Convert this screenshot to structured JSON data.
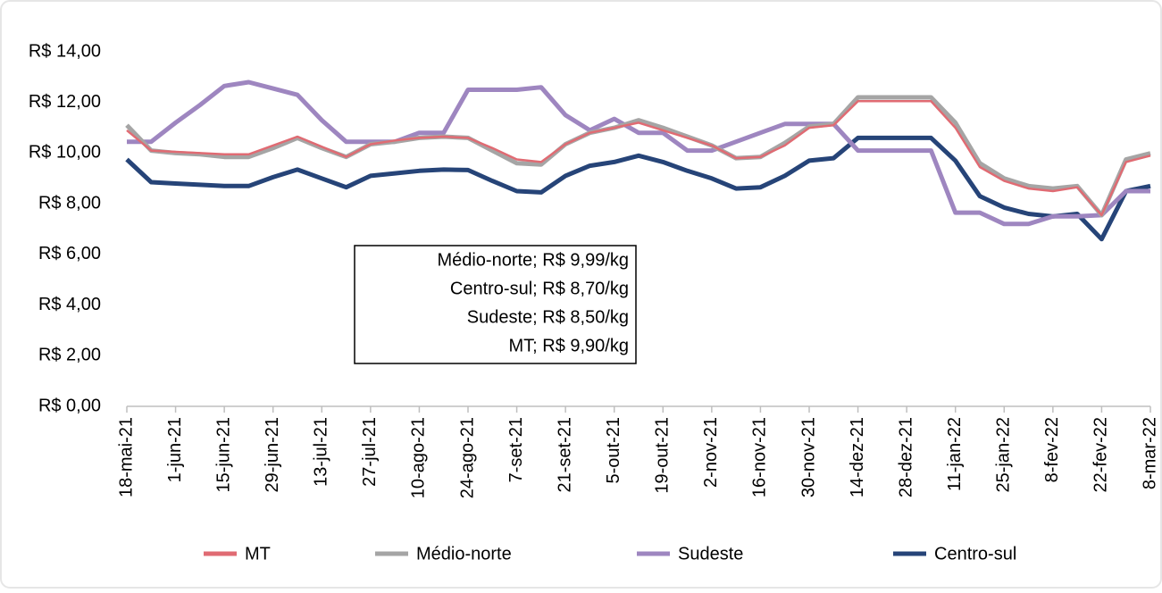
{
  "chart_data": {
    "type": "line",
    "categories": [
      "18-mai-21",
      null,
      "1-jun-21",
      null,
      "15-jun-21",
      null,
      "29-jun-21",
      null,
      "13-jul-21",
      null,
      "27-jul-21",
      null,
      "10-ago-21",
      null,
      "24-ago-21",
      null,
      "7-set-21",
      null,
      "21-set-21",
      null,
      "5-out-21",
      null,
      "19-out-21",
      null,
      "2-nov-21",
      null,
      "16-nov-21",
      null,
      "30-nov-21",
      null,
      "14-dez-21",
      null,
      "28-dez-21",
      null,
      "11-jan-22",
      null,
      "25-jan-22",
      null,
      "8-fev-22",
      null,
      "22-fev-22",
      null,
      "8-mar-22"
    ],
    "series": [
      {
        "name": "MT",
        "color": "#e06b73",
        "values": [
          10.9,
          10.1,
          10.05,
          10.0,
          9.95,
          9.95,
          10.3,
          10.65,
          10.25,
          9.85,
          10.35,
          10.5,
          10.6,
          10.65,
          10.6,
          10.2,
          9.75,
          9.65,
          10.35,
          10.8,
          11.0,
          11.2,
          10.9,
          10.6,
          10.3,
          9.8,
          9.85,
          10.3,
          11.0,
          11.1,
          12.05,
          12.05,
          12.05,
          12.05,
          11.0,
          9.45,
          8.9,
          8.6,
          8.5,
          8.65,
          7.55,
          9.65,
          9.9
        ]
      },
      {
        "name": "Médio-norte",
        "color": "#a5a5a5",
        "values": [
          11.1,
          10.1,
          10.0,
          9.95,
          9.85,
          9.85,
          10.2,
          10.6,
          10.2,
          9.85,
          10.35,
          10.45,
          10.6,
          10.65,
          10.6,
          10.1,
          9.6,
          9.55,
          10.35,
          10.8,
          11.0,
          11.3,
          11.0,
          10.65,
          10.3,
          9.8,
          9.85,
          10.4,
          11.05,
          11.15,
          12.2,
          12.2,
          12.2,
          12.2,
          11.2,
          9.6,
          9.0,
          8.7,
          8.6,
          8.7,
          7.55,
          9.75,
          9.99
        ]
      },
      {
        "name": "Sudeste",
        "color": "#9e86c0",
        "values": [
          10.45,
          10.45,
          11.2,
          11.9,
          12.65,
          12.8,
          12.55,
          12.3,
          11.3,
          10.45,
          10.45,
          10.45,
          10.8,
          10.8,
          12.5,
          12.5,
          12.5,
          12.6,
          11.5,
          10.9,
          11.35,
          10.8,
          10.8,
          10.1,
          10.1,
          10.45,
          10.8,
          11.15,
          11.15,
          11.15,
          10.1,
          10.1,
          10.1,
          10.1,
          7.65,
          7.65,
          7.2,
          7.2,
          7.5,
          7.5,
          7.55,
          8.5,
          8.5
        ]
      },
      {
        "name": "Centro-sul",
        "color": "#264478",
        "values": [
          9.75,
          8.85,
          8.8,
          8.75,
          8.7,
          8.7,
          9.05,
          9.35,
          9.0,
          8.65,
          9.1,
          9.2,
          9.3,
          9.35,
          9.33,
          8.9,
          8.5,
          8.45,
          9.1,
          9.5,
          9.65,
          9.9,
          9.65,
          9.3,
          9.0,
          8.6,
          8.65,
          9.1,
          9.7,
          9.8,
          10.6,
          10.6,
          10.6,
          10.6,
          9.7,
          8.3,
          7.85,
          7.6,
          7.5,
          7.6,
          6.6,
          8.5,
          8.7
        ]
      }
    ],
    "ylim": [
      0,
      14
    ],
    "yticks": [
      {
        "value": 0,
        "label": "R$ 0,00"
      },
      {
        "value": 2,
        "label": "R$ 2,00"
      },
      {
        "value": 4,
        "label": "R$ 4,00"
      },
      {
        "value": 6,
        "label": "R$ 6,00"
      },
      {
        "value": 8,
        "label": "R$ 8,00"
      },
      {
        "value": 10,
        "label": "R$ 10,00"
      },
      {
        "value": 12,
        "label": "R$ 12,00"
      },
      {
        "value": 14,
        "label": "R$ 14,00"
      }
    ],
    "annotations": [
      "Médio-norte; R$ 9,99/kg",
      "Centro-sul; R$ 8,70/kg",
      "Sudeste; R$ 8,50/kg",
      "MT; R$ 9,90/kg"
    ],
    "grid": false,
    "legend": "bottom"
  }
}
